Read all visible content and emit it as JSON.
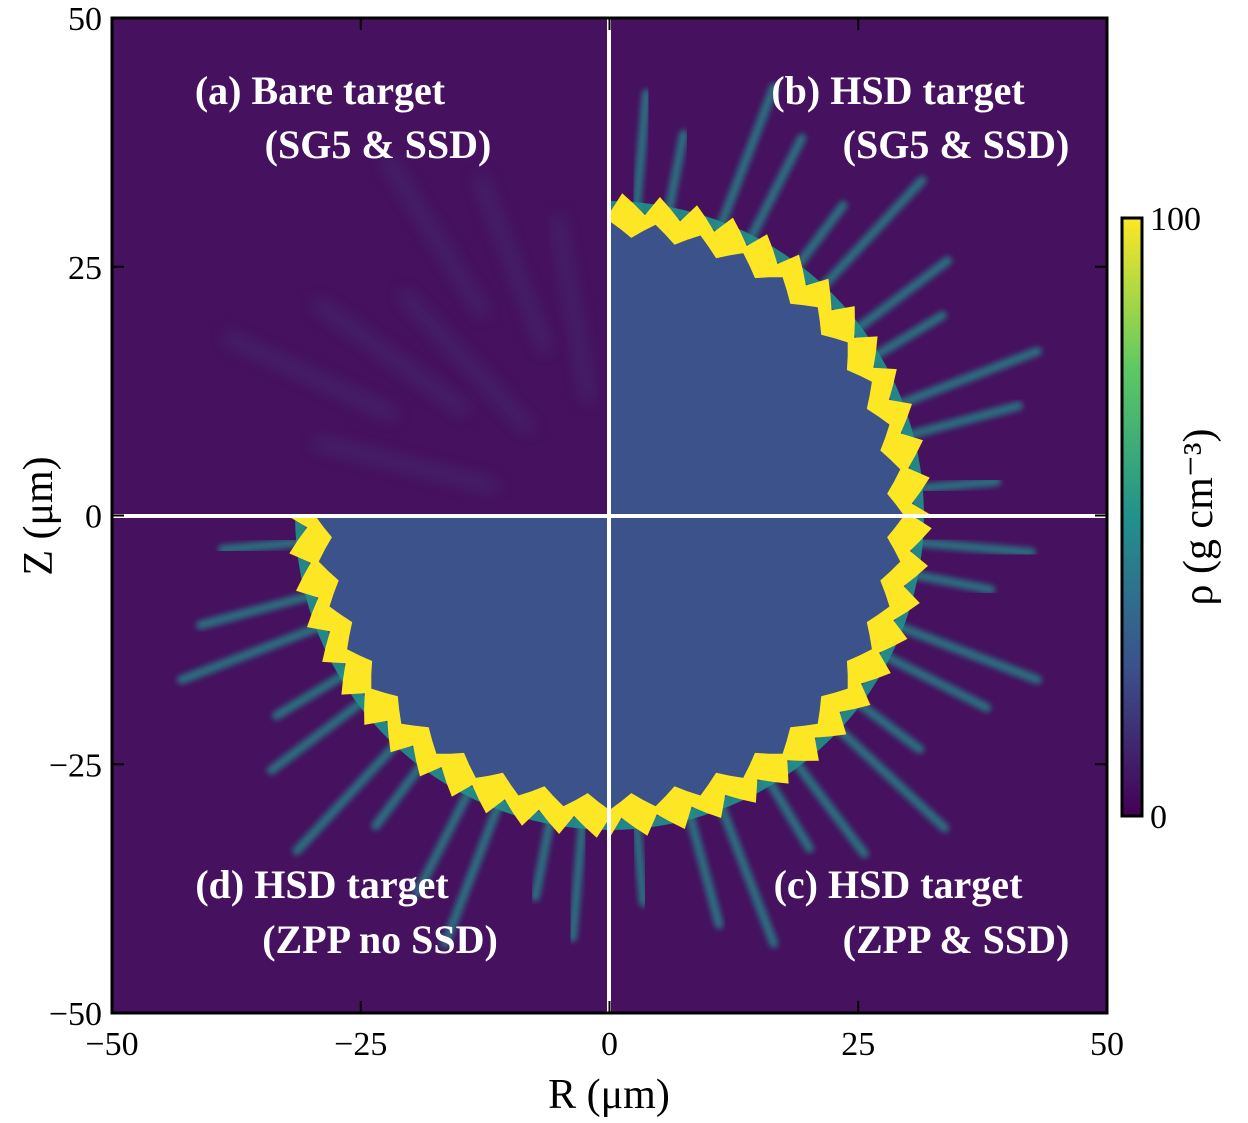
{
  "chart_data": {
    "type": "heatmap",
    "xlabel": "R (μm)",
    "ylabel": "Z (μm)",
    "xlim": [
      -50,
      50
    ],
    "ylim": [
      -50,
      50
    ],
    "x_ticks": [
      -50,
      -25,
      0,
      25,
      50
    ],
    "y_ticks": [
      -50,
      -25,
      0,
      25,
      50
    ],
    "x_tick_labels": [
      "−50",
      "−25",
      "0",
      "25",
      "50"
    ],
    "y_tick_labels": [
      "−50",
      "−25",
      "0",
      "25",
      "50"
    ],
    "colorbar": {
      "label": "ρ (g cm⁻³)",
      "range": [
        0,
        100
      ],
      "tick_labels": [
        "0",
        "100"
      ],
      "colormap": "viridis",
      "colors": [
        "#440154",
        "#3b528b",
        "#21918c",
        "#5ec962",
        "#fde725"
      ]
    },
    "panels": [
      {
        "id": "a",
        "quadrant": "top-left",
        "line1": "(a) Bare target",
        "line2": "(SG5 & SSD)",
        "shell": false
      },
      {
        "id": "b",
        "quadrant": "top-right",
        "line1": "(b) HSD target",
        "line2": "(SG5 & SSD)",
        "shell": true,
        "shell_radius": 31
      },
      {
        "id": "c",
        "quadrant": "bottom-right",
        "line1": "(c) HSD target",
        "line2": "(ZPP & SSD)",
        "shell": true,
        "shell_radius": 31
      },
      {
        "id": "d",
        "quadrant": "bottom-left",
        "line1": "(d) HSD target",
        "line2": "(ZPP no SSD)",
        "shell": true,
        "shell_radius": 31
      }
    ]
  }
}
